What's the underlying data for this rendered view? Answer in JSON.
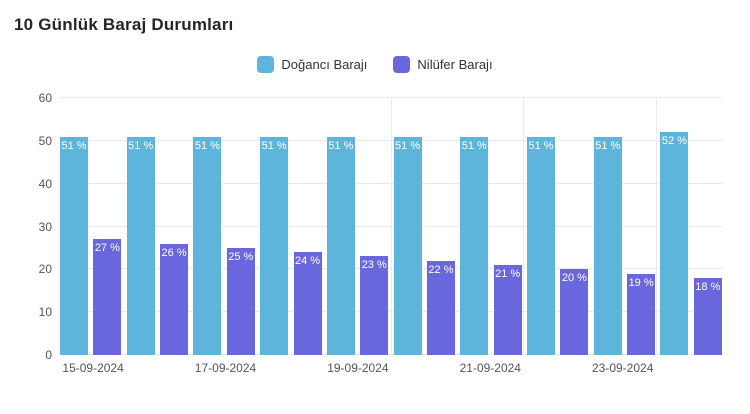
{
  "chart_data": {
    "type": "bar",
    "title": "10 Günlük Baraj Durumları",
    "n_groups": 10,
    "x_tick_labels": [
      "15-09-2024",
      "17-09-2024",
      "19-09-2024",
      "21-09-2024",
      "23-09-2024"
    ],
    "x_tick_every_n_groups": 2,
    "series": [
      {
        "name": "Doğancı Barajı",
        "color": "#5EB5DC",
        "values": [
          51,
          51,
          51,
          51,
          51,
          51,
          51,
          51,
          51,
          52
        ]
      },
      {
        "name": "Nilüfer Barajı",
        "color": "#6A67DE",
        "values": [
          27,
          26,
          25,
          24,
          23,
          22,
          21,
          20,
          19,
          18
        ]
      }
    ],
    "bar_label_suffix": " %",
    "bar_label_color": "#FFFFFF",
    "xlabel": "",
    "ylabel": "",
    "ylim": [
      0,
      60
    ],
    "y_ticks": [
      0,
      10,
      20,
      30,
      40,
      50,
      60
    ],
    "grid": true,
    "v_gridline_group_starts": [
      5,
      7,
      9
    ],
    "legend_position": "top-center",
    "colors": {
      "gridline": "#EBEBEB",
      "axis_label": "#555555",
      "title": "#262626",
      "legend_text": "#333333",
      "background": "#FFFFFF"
    }
  }
}
